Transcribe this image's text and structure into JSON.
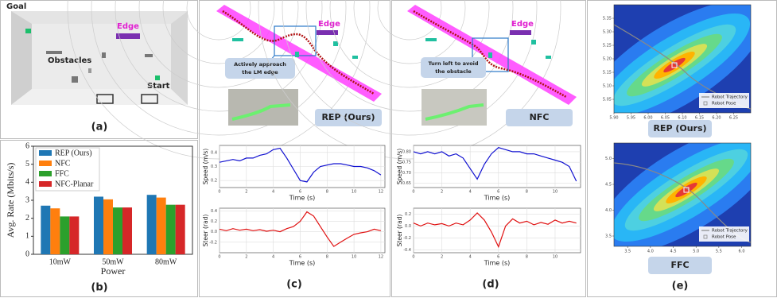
{
  "figure": {
    "a": {
      "caption": "(a)",
      "goal": "Goal",
      "edge": "Edge",
      "obstacles": "Obstacles",
      "start": "Start"
    },
    "b": {
      "caption": "(b)"
    },
    "c": {
      "caption": "(c)",
      "edge": "Edge",
      "note": [
        "Actively approach",
        "the LM edge"
      ],
      "method": "REP (Ours)"
    },
    "d": {
      "caption": "(d)",
      "edge": "Edge",
      "note": [
        "Turn left to avoid",
        "the obstacle"
      ],
      "method": "NFC"
    },
    "e": {
      "caption": "(e)",
      "method_top": "REP (Ours)",
      "method_bottom": "FFC"
    }
  },
  "chart_data": [
    {
      "type": "bar",
      "xlabel": "Power",
      "ylabel": "Avg. Rate (Mbits/s)",
      "categories": [
        "10mW",
        "50mW",
        "80mW"
      ],
      "series": [
        {
          "name": "REP (Ours)",
          "color": "#1f77b4",
          "values": [
            2.7,
            3.2,
            3.3
          ]
        },
        {
          "name": "NFC",
          "color": "#ff7f0e",
          "values": [
            2.55,
            3.05,
            3.15
          ]
        },
        {
          "name": "FFC",
          "color": "#2ca02c",
          "values": [
            2.1,
            2.6,
            2.75
          ]
        },
        {
          "name": "NFC-Planar",
          "color": "#d62728",
          "values": [
            2.1,
            2.6,
            2.75
          ]
        }
      ],
      "ylim": [
        0,
        6
      ],
      "yticks": [
        0,
        1,
        2,
        3,
        4,
        5,
        6
      ],
      "legend": "upper left"
    },
    {
      "type": "line",
      "xlabel": "Time (s)",
      "ylabel": "Speed (m/s)",
      "color": "#1010d0",
      "x": [
        0,
        0.5,
        1,
        1.5,
        2,
        2.5,
        3,
        3.5,
        4,
        4.5,
        5,
        5.5,
        6,
        6.5,
        7,
        7.5,
        8,
        8.5,
        9,
        9.5,
        10,
        10.5,
        11,
        11.5,
        12
      ],
      "values": [
        0.33,
        0.34,
        0.35,
        0.34,
        0.36,
        0.36,
        0.38,
        0.39,
        0.42,
        0.43,
        0.36,
        0.28,
        0.2,
        0.19,
        0.26,
        0.3,
        0.31,
        0.32,
        0.32,
        0.31,
        0.3,
        0.3,
        0.29,
        0.27,
        0.24
      ],
      "xlim": [
        0,
        12.3
      ],
      "ylim": [
        0.15,
        0.45
      ],
      "xticks": [
        0,
        2,
        4,
        6,
        8,
        10,
        12
      ],
      "yticks": [
        0.2,
        0.3,
        0.4
      ],
      "grid": true
    },
    {
      "type": "line",
      "xlabel": "Time (s)",
      "ylabel": "Steer (rad)",
      "color": "#e01010",
      "x": [
        0,
        0.5,
        1,
        1.5,
        2,
        2.5,
        3,
        3.5,
        4,
        4.5,
        5,
        5.5,
        6,
        6.5,
        7,
        7.5,
        8,
        8.5,
        9,
        9.5,
        10,
        10.5,
        11,
        11.5,
        12
      ],
      "values": [
        0.05,
        0.02,
        0.06,
        0.03,
        0.05,
        0.02,
        0.04,
        0.01,
        0.03,
        0.0,
        0.06,
        0.1,
        0.2,
        0.38,
        0.3,
        0.1,
        -0.1,
        -0.28,
        -0.2,
        -0.12,
        -0.05,
        -0.02,
        0.0,
        0.05,
        0.02
      ],
      "xlim": [
        0,
        12.3
      ],
      "ylim": [
        -0.4,
        0.45
      ],
      "xticks": [
        0,
        2,
        4,
        6,
        8,
        10,
        12
      ],
      "yticks": [
        -0.2,
        {
          "value": 0,
          "label": "0.0"
        },
        0.2,
        0.4
      ],
      "grid": true
    },
    {
      "type": "line",
      "xlabel": "Time (s)",
      "ylabel": "Speed (m/s)",
      "color": "#1010d0",
      "x": [
        0,
        0.5,
        1,
        1.5,
        2,
        2.5,
        3,
        3.5,
        4,
        4.5,
        5,
        5.5,
        6,
        6.5,
        7,
        7.5,
        8,
        8.5,
        9,
        9.5,
        10,
        10.5,
        11,
        11.5
      ],
      "values": [
        0.8,
        0.79,
        0.8,
        0.79,
        0.8,
        0.78,
        0.79,
        0.77,
        0.72,
        0.67,
        0.74,
        0.79,
        0.82,
        0.81,
        0.8,
        0.8,
        0.79,
        0.79,
        0.78,
        0.77,
        0.76,
        0.75,
        0.73,
        0.66
      ],
      "xlim": [
        0,
        11.8
      ],
      "ylim": [
        0.63,
        0.83
      ],
      "xticks": [
        0,
        2,
        4,
        6,
        8,
        10
      ],
      "yticks": [
        0.65,
        {
          "value": 0.7,
          "label": "0.70"
        },
        0.75,
        {
          "value": 0.8,
          "label": "0.80"
        }
      ],
      "grid": true
    },
    {
      "type": "line",
      "xlabel": "Time (s)",
      "ylabel": "Steer (rad)",
      "color": "#e01010",
      "x": [
        0,
        0.5,
        1,
        1.5,
        2,
        2.5,
        3,
        3.5,
        4,
        4.5,
        5,
        5.5,
        6,
        6.5,
        7,
        7.5,
        8,
        8.5,
        9,
        9.5,
        10,
        10.5,
        11,
        11.5
      ],
      "values": [
        0.05,
        0.0,
        0.05,
        0.02,
        0.04,
        0.0,
        0.05,
        0.02,
        0.1,
        0.22,
        0.1,
        -0.1,
        -0.35,
        0.0,
        0.12,
        0.05,
        0.08,
        0.02,
        0.06,
        0.03,
        0.1,
        0.05,
        0.08,
        0.05
      ],
      "xlim": [
        0,
        11.8
      ],
      "ylim": [
        -0.45,
        0.3
      ],
      "xticks": [
        0,
        2,
        4,
        6,
        8,
        10
      ],
      "yticks": [
        -0.4,
        -0.2,
        {
          "value": 0,
          "label": "0.0"
        },
        0.2
      ],
      "grid": true
    },
    {
      "type": "heatmap",
      "legend": [
        "Robot Trajectory",
        "Robot Pose"
      ],
      "xlim": [
        5.9,
        6.3
      ],
      "ylim": [
        5.0,
        5.4
      ],
      "xticks": [
        {
          "value": 5.9,
          "label": "5.90"
        },
        5.95,
        {
          "value": 6.0,
          "label": "6.00"
        },
        6.05,
        {
          "value": 6.1,
          "label": "6.10"
        },
        6.15,
        {
          "value": 6.2,
          "label": "6.20"
        },
        6.25
      ],
      "yticks": [
        5.05,
        {
          "value": 5.1,
          "label": "5.10"
        },
        5.15,
        {
          "value": 5.2,
          "label": "5.20"
        },
        5.25,
        {
          "value": 5.3,
          "label": "5.30"
        },
        5.35
      ]
    },
    {
      "type": "heatmap",
      "legend": [
        "Robot Trajectory",
        "Robot Pose"
      ],
      "xlim": [
        3.2,
        6.2
      ],
      "ylim": [
        3.3,
        5.3
      ],
      "xticks": [
        3.5,
        {
          "value": 4,
          "label": "4.0"
        },
        4.5,
        {
          "value": 5,
          "label": "5.0"
        },
        5.5,
        {
          "value": 6,
          "label": "6.0"
        }
      ],
      "yticks": [
        3.5,
        {
          "value": 4,
          "label": "4.0"
        },
        4.5,
        {
          "value": 5,
          "label": "5.0"
        }
      ]
    }
  ]
}
